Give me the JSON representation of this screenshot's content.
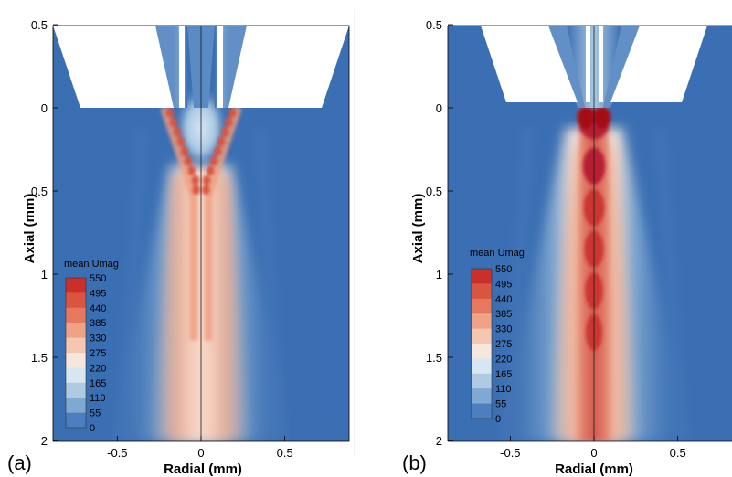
{
  "chart_data": [
    {
      "panel_label": "(a)",
      "type": "heatmap",
      "xlabel": "Radial (mm)",
      "ylabel": "Axial (mm)",
      "xlim": [
        -0.9,
        0.9
      ],
      "ylim": [
        -0.5,
        2.05
      ],
      "y_inverted": true,
      "x_ticks": [
        "-0.5",
        "0",
        "0.5"
      ],
      "x_tick_values": [
        -0.5,
        0,
        0.5
      ],
      "y_ticks": [
        "-0.5",
        "0",
        "0.5",
        "1",
        "1.5",
        "2"
      ],
      "y_tick_values": [
        -0.5,
        0,
        0.5,
        1,
        1.5,
        2
      ],
      "colorbar": {
        "title": "mean Umag",
        "levels": [
          "550",
          "495",
          "440",
          "385",
          "330",
          "275",
          "220",
          "165",
          "110",
          "55",
          "0"
        ]
      },
      "nozzle_exit_axial": 0,
      "jet_peaks": {
        "shape": "two off-axis jets merging downstream",
        "start_radial": 0.2,
        "start_axial": 0,
        "merge_axial": 0.5,
        "peak_value": 495
      }
    },
    {
      "panel_label": "(b)",
      "type": "heatmap",
      "xlabel": "Radial (mm)",
      "ylabel": "Axial (mm)",
      "xlim": [
        -0.9,
        0.9
      ],
      "ylim": [
        -0.5,
        2.05
      ],
      "y_inverted": true,
      "x_ticks": [
        "-0.5",
        "0",
        "0.5"
      ],
      "x_tick_values": [
        -0.5,
        0,
        0.5
      ],
      "y_ticks": [
        "-0.5",
        "0",
        "0.5",
        "1",
        "1.5",
        "2"
      ],
      "y_tick_values": [
        -0.5,
        0,
        0.5,
        1,
        1.5,
        2
      ],
      "colorbar": {
        "title": "mean Umag",
        "levels": [
          "550",
          "495",
          "440",
          "385",
          "330",
          "275",
          "220",
          "165",
          "110",
          "55",
          "0"
        ]
      },
      "nozzle_exit_axial": 0,
      "jet_peaks": {
        "shape": "single central jet with shock cells",
        "shock_cell_axial": [
          0.1,
          0.35,
          0.6,
          0.85,
          1.1,
          1.35
        ],
        "peak_value": 550
      }
    }
  ]
}
